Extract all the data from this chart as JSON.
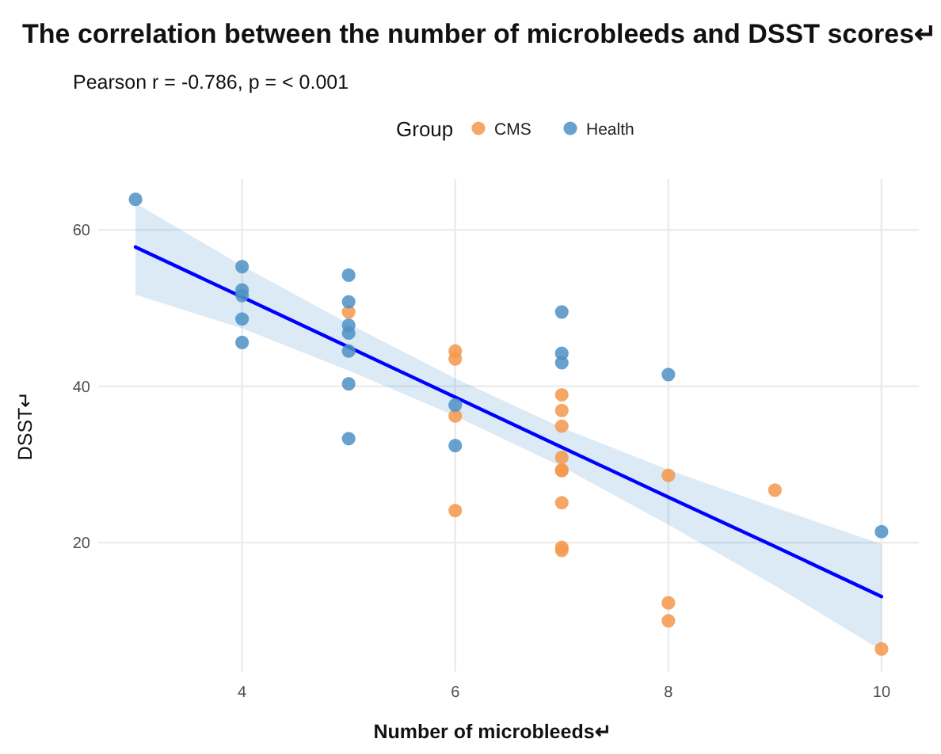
{
  "chart_data": {
    "type": "scatter",
    "title": "The correlation between the number of microbleeds and DSST scores↵",
    "subtitle": "Pearson r = -0.786, p = < 0.001",
    "xlabel": "Number of microbleeds↵",
    "ylabel": "DSST↵",
    "legend_title": "Group",
    "legend": "top",
    "grid": true,
    "marker": "circle",
    "xlim": [
      2.65,
      10.35
    ],
    "xticks": [
      4,
      6,
      8,
      10
    ],
    "ylim": [
      3.5,
      66.5
    ],
    "yticks": [
      20,
      40,
      60
    ],
    "series": [
      {
        "name": "CMS",
        "color": "#f5984a",
        "x": [
          5,
          6,
          6,
          6,
          6,
          7,
          7,
          7,
          7,
          7,
          7,
          7,
          7,
          7,
          8,
          8,
          8,
          9,
          10
        ],
        "values": [
          49.5,
          44.5,
          43.5,
          36.2,
          24.1,
          38.9,
          36.9,
          34.9,
          30.9,
          29.2,
          25.1,
          19.4,
          19.0,
          29.3,
          28.6,
          12.3,
          10.0,
          26.7,
          6.4
        ]
      },
      {
        "name": "Health",
        "color": "#4d91c6",
        "x": [
          3,
          4,
          4,
          4,
          4,
          4,
          5,
          5,
          5,
          5,
          5,
          5,
          5,
          6,
          6,
          7,
          7,
          7,
          8,
          10
        ],
        "values": [
          63.9,
          55.3,
          52.3,
          51.6,
          48.6,
          45.6,
          54.2,
          50.8,
          47.8,
          46.8,
          44.5,
          40.3,
          33.3,
          37.6,
          32.4,
          49.5,
          44.2,
          43.0,
          41.5,
          21.4
        ]
      },
      {
        "type": "line",
        "marker": "none",
        "color": "#0000ff",
        "x": [
          3,
          4,
          5,
          6,
          7,
          8,
          9,
          10
        ],
        "values": [
          57.8,
          51.4,
          45.0,
          38.6,
          32.2,
          25.8,
          19.5,
          13.1
        ],
        "lower": [
          51.7,
          47.4,
          42.0,
          36.2,
          29.7,
          22.3,
          14.5,
          6.2
        ],
        "upper": [
          63.4,
          55.4,
          48.0,
          41.0,
          34.7,
          29.3,
          24.5,
          19.8
        ]
      }
    ]
  }
}
